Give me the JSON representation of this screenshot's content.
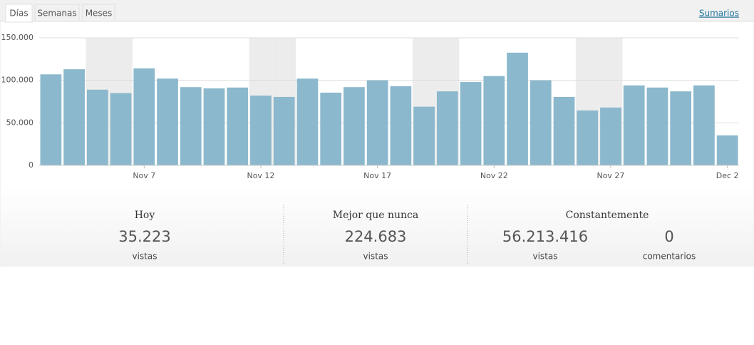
{
  "tabs": [
    "Días",
    "Semanas",
    "Meses"
  ],
  "link": "Sumarios",
  "chart_data": {
    "type": "bar",
    "categories": [
      null,
      null,
      null,
      null,
      "Nov 7",
      null,
      null,
      null,
      null,
      "Nov 12",
      null,
      null,
      null,
      null,
      "Nov 17",
      null,
      null,
      null,
      null,
      "Nov 22",
      null,
      null,
      null,
      null,
      "Nov 27",
      null,
      null,
      null,
      null,
      "Dec 2"
    ],
    "values": [
      107000,
      113000,
      89000,
      85000,
      114000,
      102000,
      92000,
      90500,
      91500,
      82000,
      80500,
      102000,
      85500,
      92000,
      100000,
      93000,
      69000,
      87000,
      98000,
      105000,
      132500,
      100000,
      80500,
      64500,
      68000,
      94000,
      91500,
      87000,
      94000,
      35223
    ],
    "color": "#8bb8cc",
    "shaded_categories": [
      2,
      3,
      9,
      10,
      16,
      17,
      23,
      24
    ],
    "ylim": [
      0,
      150000
    ],
    "yticks": [
      0,
      {
        "value": 50000,
        "label": "50.000"
      },
      {
        "value": 100000,
        "label": "100.000"
      },
      {
        "value": 150000,
        "label": "150.000"
      }
    ],
    "grid": true
  },
  "summary": [
    {
      "title": "Hoy",
      "stats": [
        {
          "value": "35.223",
          "label": "vistas"
        }
      ]
    },
    {
      "title": "Mejor que nunca",
      "stats": [
        {
          "value": "224.683",
          "label": "vistas"
        }
      ]
    },
    {
      "title": "Constantemente",
      "stats": [
        {
          "value": "56.213.416",
          "label": "vistas"
        },
        {
          "value": "0",
          "label": "comentarios"
        }
      ]
    }
  ]
}
